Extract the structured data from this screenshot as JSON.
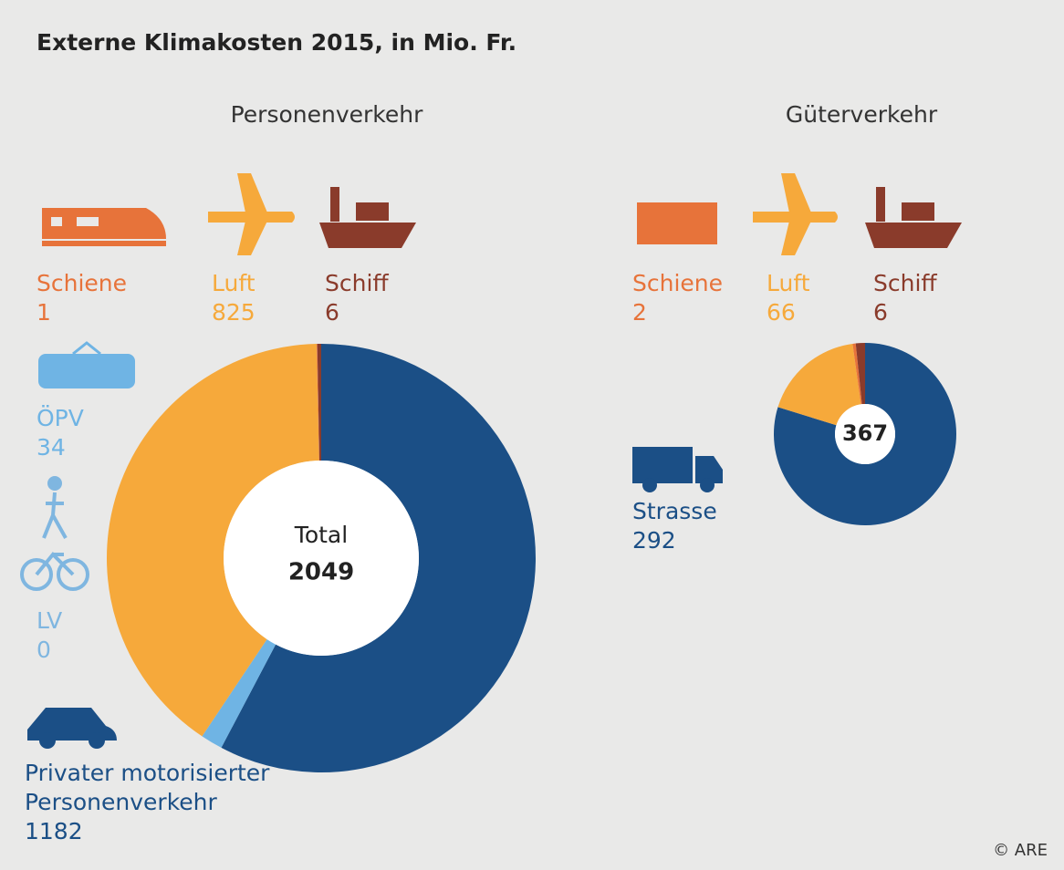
{
  "title": "Externe Klimakosten 2015, in Mio. Fr.",
  "source": "© ARE",
  "chart_data": [
    {
      "type": "donut",
      "title": "Personenverkehr",
      "categories": [
        "Privater motorisierter Personenverkehr",
        "ÖPV",
        "LV",
        "Luft",
        "Schiene",
        "Schiff"
      ],
      "values": [
        1182,
        34,
        0,
        825,
        1,
        6
      ],
      "colors": [
        "#1b4f86",
        "#6fb4e4",
        "#7fb6e0",
        "#f6a93b",
        "#e7733a",
        "#8a3b2b"
      ],
      "total_label": "Total",
      "total": 2049
    },
    {
      "type": "donut",
      "title": "Güterverkehr",
      "categories": [
        "Strasse",
        "Luft",
        "Schiene",
        "Schiff"
      ],
      "values": [
        292,
        66,
        2,
        6
      ],
      "colors": [
        "#1b4f86",
        "#f6a93b",
        "#e7733a",
        "#8a3b2b"
      ],
      "total": 367
    }
  ]
}
